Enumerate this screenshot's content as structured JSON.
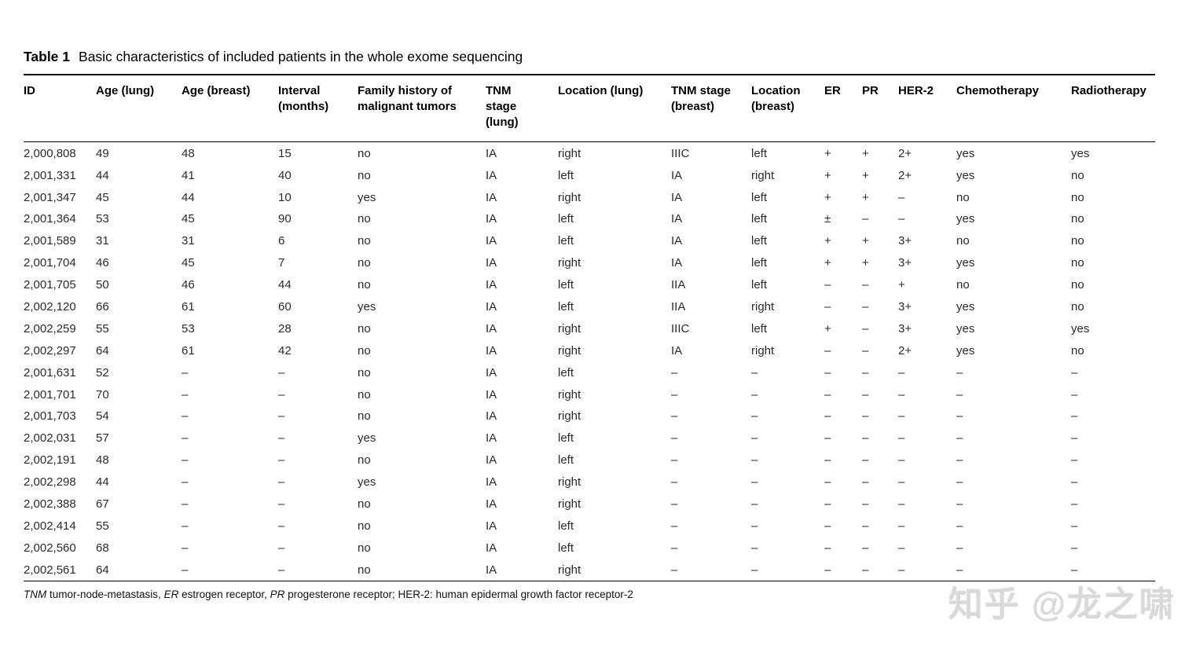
{
  "caption": {
    "label": "Table 1",
    "text": "Basic characteristics of included patients in the whole exome sequencing"
  },
  "table": {
    "columns": [
      {
        "label": "ID",
        "lines": [
          "ID"
        ]
      },
      {
        "label": "Age (lung)",
        "lines": [
          "Age (lung)"
        ]
      },
      {
        "label": "Age (breast)",
        "lines": [
          "Age (breast)"
        ]
      },
      {
        "label": "Interval (months)",
        "lines": [
          "Interval",
          "(months)"
        ]
      },
      {
        "label": "Family history of malignant tumors",
        "lines": [
          "Family history of",
          "malignant tumors"
        ]
      },
      {
        "label": "TNM stage (lung)",
        "lines": [
          "TNM",
          "stage",
          "(lung)"
        ]
      },
      {
        "label": "Location (lung)",
        "lines": [
          "Location (lung)"
        ]
      },
      {
        "label": "TNM stage (breast)",
        "lines": [
          "TNM stage",
          "(breast)"
        ]
      },
      {
        "label": "Location (breast)",
        "lines": [
          "Location",
          "(breast)"
        ]
      },
      {
        "label": "ER",
        "lines": [
          "ER"
        ]
      },
      {
        "label": "PR",
        "lines": [
          "PR"
        ]
      },
      {
        "label": "HER-2",
        "lines": [
          "HER-2"
        ]
      },
      {
        "label": "Chemotherapy",
        "lines": [
          "Chemotherapy"
        ]
      },
      {
        "label": "Radiotherapy",
        "lines": [
          "Radiotherapy"
        ]
      }
    ],
    "rows": [
      [
        "2,000,808",
        "49",
        "48",
        "15",
        "no",
        "IA",
        "right",
        "IIIC",
        "left",
        "+",
        "+",
        "2+",
        "yes",
        "yes"
      ],
      [
        "2,001,331",
        "44",
        "41",
        "40",
        "no",
        "IA",
        "left",
        "IA",
        "right",
        "+",
        "+",
        "2+",
        "yes",
        "no"
      ],
      [
        "2,001,347",
        "45",
        "44",
        "10",
        "yes",
        "IA",
        "right",
        "IA",
        "left",
        "+",
        "+",
        "–",
        "no",
        "no"
      ],
      [
        "2,001,364",
        "53",
        "45",
        "90",
        "no",
        "IA",
        "left",
        "IA",
        "left",
        "±",
        "–",
        "–",
        "yes",
        "no"
      ],
      [
        "2,001,589",
        "31",
        "31",
        "6",
        "no",
        "IA",
        "left",
        "IA",
        "left",
        "+",
        "+",
        "3+",
        "no",
        "no"
      ],
      [
        "2,001,704",
        "46",
        "45",
        "7",
        "no",
        "IA",
        "right",
        "IA",
        "left",
        "+",
        "+",
        "3+",
        "yes",
        "no"
      ],
      [
        "2,001,705",
        "50",
        "46",
        "44",
        "no",
        "IA",
        "left",
        "IIA",
        "left",
        "–",
        "–",
        "+",
        "no",
        "no"
      ],
      [
        "2,002,120",
        "66",
        "61",
        "60",
        "yes",
        "IA",
        "left",
        "IIA",
        "right",
        "–",
        "–",
        "3+",
        "yes",
        "no"
      ],
      [
        "2,002,259",
        "55",
        "53",
        "28",
        "no",
        "IA",
        "right",
        "IIIC",
        "left",
        "+",
        "–",
        "3+",
        "yes",
        "yes"
      ],
      [
        "2,002,297",
        "64",
        "61",
        "42",
        "no",
        "IA",
        "right",
        "IA",
        "right",
        "–",
        "–",
        "2+",
        "yes",
        "no"
      ],
      [
        "2,001,631",
        "52",
        "–",
        "–",
        "no",
        "IA",
        "left",
        "–",
        "–",
        "–",
        "–",
        "–",
        "–",
        "–"
      ],
      [
        "2,001,701",
        "70",
        "–",
        "–",
        "no",
        "IA",
        "right",
        "–",
        "–",
        "–",
        "–",
        "–",
        "–",
        "–"
      ],
      [
        "2,001,703",
        "54",
        "–",
        "–",
        "no",
        "IA",
        "right",
        "–",
        "–",
        "–",
        "–",
        "–",
        "–",
        "–"
      ],
      [
        "2,002,031",
        "57",
        "–",
        "–",
        "yes",
        "IA",
        "left",
        "–",
        "–",
        "–",
        "–",
        "–",
        "–",
        "–"
      ],
      [
        "2,002,191",
        "48",
        "–",
        "–",
        "no",
        "IA",
        "left",
        "–",
        "–",
        "–",
        "–",
        "–",
        "–",
        "–"
      ],
      [
        "2,002,298",
        "44",
        "–",
        "–",
        "yes",
        "IA",
        "right",
        "–",
        "–",
        "–",
        "–",
        "–",
        "–",
        "–"
      ],
      [
        "2,002,388",
        "67",
        "–",
        "–",
        "no",
        "IA",
        "right",
        "–",
        "–",
        "–",
        "–",
        "–",
        "–",
        "–"
      ],
      [
        "2,002,414",
        "55",
        "–",
        "–",
        "no",
        "IA",
        "left",
        "–",
        "–",
        "–",
        "–",
        "–",
        "–",
        "–"
      ],
      [
        "2,002,560",
        "68",
        "–",
        "–",
        "no",
        "IA",
        "left",
        "–",
        "–",
        "–",
        "–",
        "–",
        "–",
        "–"
      ],
      [
        "2,002,561",
        "64",
        "–",
        "–",
        "no",
        "IA",
        "right",
        "–",
        "–",
        "–",
        "–",
        "–",
        "–",
        "–"
      ]
    ]
  },
  "footnote": {
    "segments": [
      {
        "text": "TNM",
        "italic": true
      },
      {
        "text": " tumor-node-metastasis, ",
        "italic": false
      },
      {
        "text": "ER",
        "italic": true
      },
      {
        "text": " estrogen receptor, ",
        "italic": false
      },
      {
        "text": "PR",
        "italic": true
      },
      {
        "text": " progesterone receptor; HER-2: human epidermal growth factor receptor-2",
        "italic": false
      }
    ]
  },
  "watermark": {
    "text": "知乎 @龙之啸"
  },
  "colors": {
    "background": "#ffffff",
    "text": "#1c1c1c",
    "rule": "#000000",
    "watermark": "#d9d9d9"
  }
}
